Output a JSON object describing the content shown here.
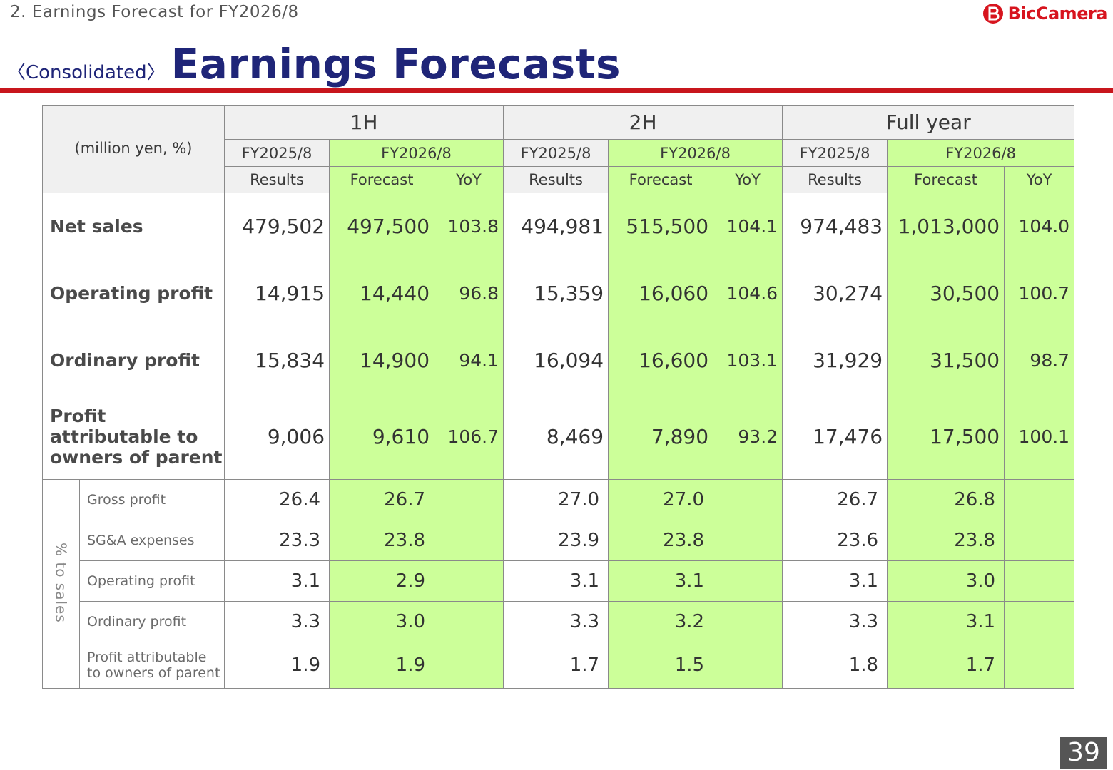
{
  "header": {
    "section_label": "2. Earnings Forecast for FY2026/8",
    "brand": "BicCamera",
    "title_prefix": "〈Consolidated〉",
    "title": "Earnings Forecasts"
  },
  "colors": {
    "brand_red": "#c8161d",
    "title_navy": "#1f2578",
    "forecast_green": "#ccff99",
    "header_gray": "#f0f0f0"
  },
  "table": {
    "unit_label": "(million yen, %)",
    "periods": [
      "1H",
      "2H",
      "Full year"
    ],
    "fiscal_years": [
      "FY2025/8",
      "FY2026/8",
      "FY2025/8",
      "FY2026/8",
      "FY2025/8",
      "FY2026/8"
    ],
    "column_types": [
      "Results",
      "Forecast",
      "YoY",
      "Results",
      "Forecast",
      "YoY",
      "Results",
      "Forecast",
      "YoY"
    ],
    "rows": [
      {
        "label": "Net sales",
        "values": [
          "479,502",
          "497,500",
          "103.8",
          "494,981",
          "515,500",
          "104.1",
          "974,483",
          "1,013,000",
          "104.0"
        ]
      },
      {
        "label": "Operating profit",
        "values": [
          "14,915",
          "14,440",
          "96.8",
          "15,359",
          "16,060",
          "104.6",
          "30,274",
          "30,500",
          "100.7"
        ]
      },
      {
        "label": "Ordinary profit",
        "values": [
          "15,834",
          "14,900",
          "94.1",
          "16,094",
          "16,600",
          "103.1",
          "31,929",
          "31,500",
          "98.7"
        ]
      },
      {
        "label": "Profit attributable to owners of parent",
        "values": [
          "9,006",
          "9,610",
          "106.7",
          "8,469",
          "7,890",
          "93.2",
          "17,476",
          "17,500",
          "100.1"
        ]
      }
    ],
    "ratio_group_label": "% to sales",
    "ratio_rows": [
      {
        "label": "Gross profit",
        "values": [
          "26.4",
          "26.7",
          "27.0",
          "27.0",
          "26.7",
          "26.8"
        ]
      },
      {
        "label": "SG&A expenses",
        "values": [
          "23.3",
          "23.8",
          "23.9",
          "23.8",
          "23.6",
          "23.8"
        ]
      },
      {
        "label": "Operating profit",
        "values": [
          "3.1",
          "2.9",
          "3.1",
          "3.1",
          "3.1",
          "3.0"
        ]
      },
      {
        "label": "Ordinary profit",
        "values": [
          "3.3",
          "3.0",
          "3.3",
          "3.2",
          "3.3",
          "3.1"
        ]
      },
      {
        "label": "Profit attributable to owners of parent",
        "values": [
          "1.9",
          "1.9",
          "1.7",
          "1.5",
          "1.8",
          "1.7"
        ]
      }
    ]
  },
  "page_number": "39"
}
